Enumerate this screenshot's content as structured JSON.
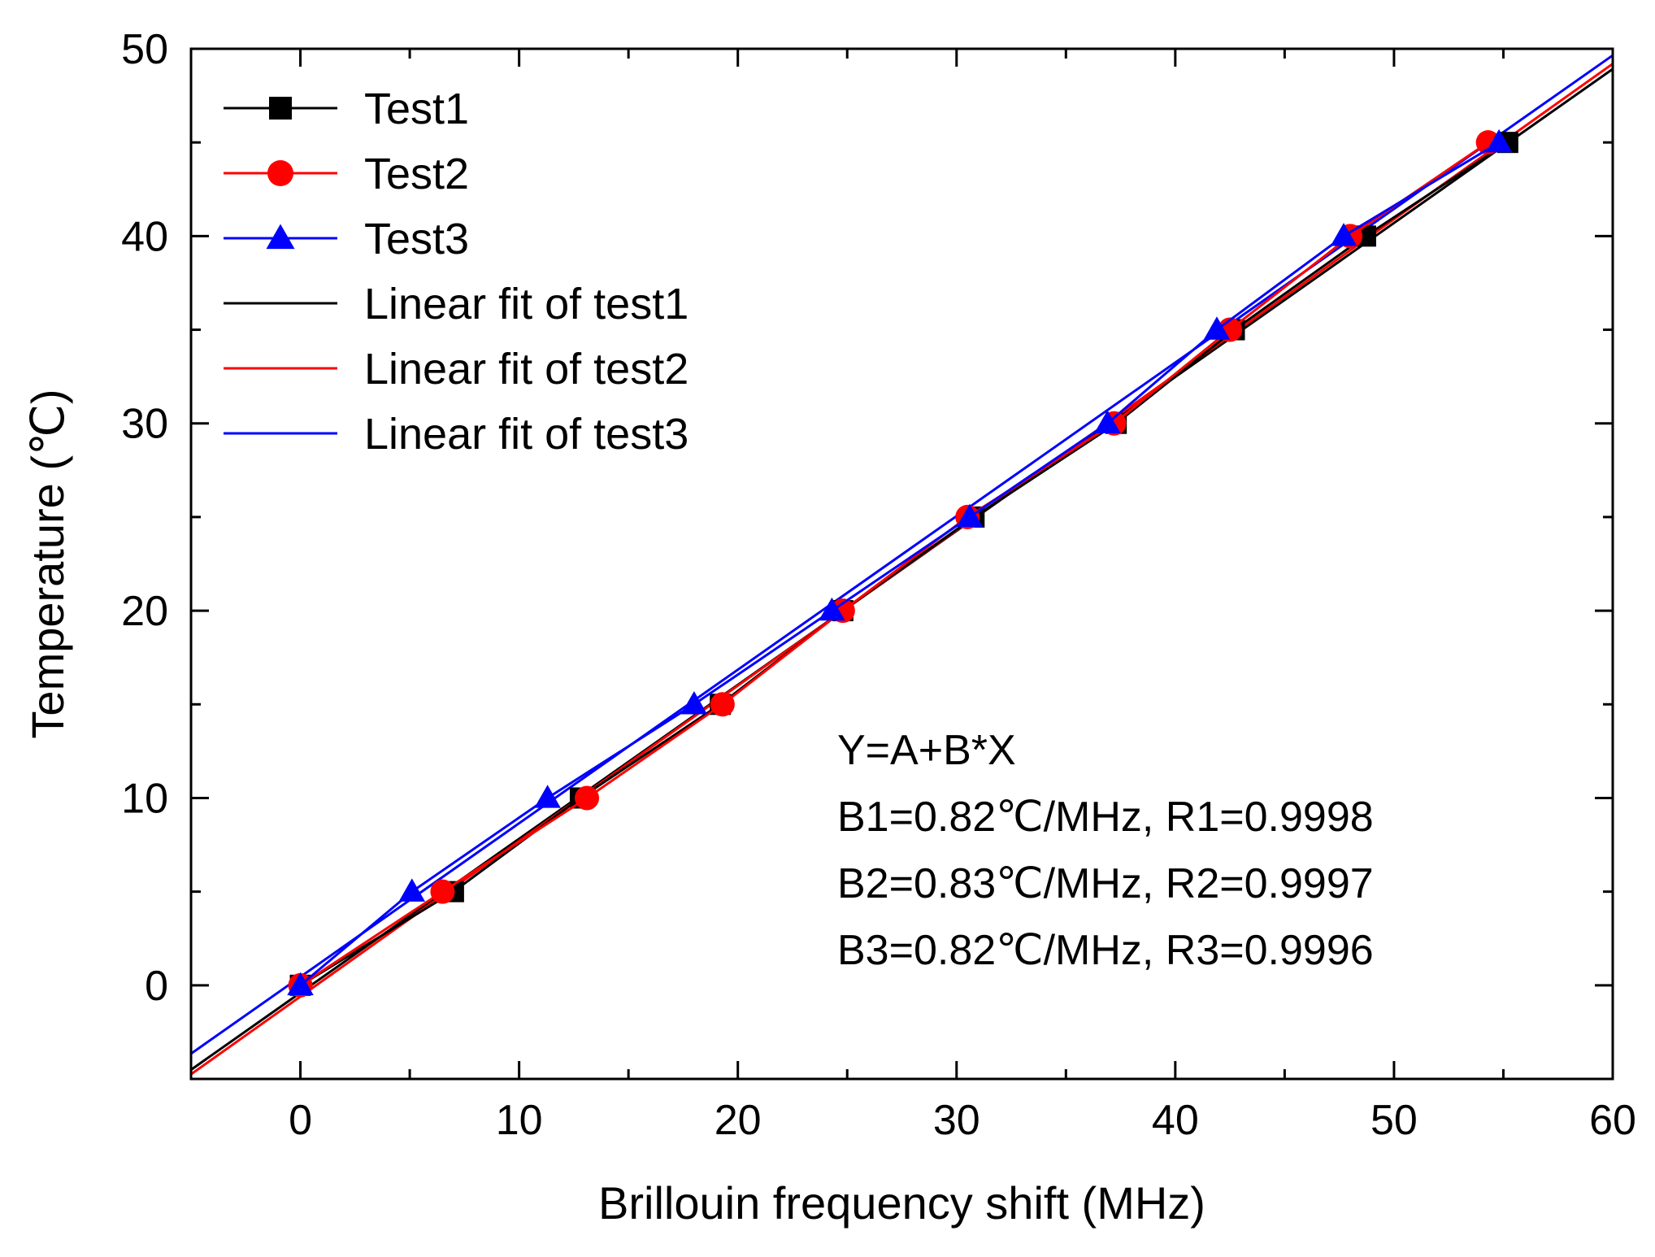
{
  "chart_data": {
    "type": "line",
    "xlabel": "Brillouin frequency shift (MHz)",
    "ylabel": "Temperature (℃)",
    "xlim": [
      -5,
      60
    ],
    "ylim": [
      -5,
      50
    ],
    "xticks": [
      0,
      10,
      20,
      30,
      40,
      50,
      60
    ],
    "yticks": [
      0,
      10,
      20,
      30,
      40,
      50
    ],
    "x_minor_step": 5,
    "y_minor_step": 5,
    "grid": false,
    "legend_position": "top-left",
    "series": [
      {
        "name": "Test1",
        "color": "#000000",
        "marker": "square",
        "x": [
          0,
          7,
          12.8,
          19.2,
          24.8,
          30.8,
          37.3,
          42.7,
          48.7,
          55.2
        ],
        "y": [
          0,
          5,
          10,
          15,
          20,
          25,
          30,
          35,
          40,
          45
        ]
      },
      {
        "name": "Test2",
        "color": "#ff0000",
        "marker": "circle",
        "x": [
          0,
          6.5,
          13.1,
          19.3,
          24.8,
          30.5,
          37.2,
          42.5,
          48.0,
          54.3
        ],
        "y": [
          0,
          5,
          10,
          15,
          20,
          25,
          30,
          35,
          40,
          45
        ]
      },
      {
        "name": "Test3",
        "color": "#0000ff",
        "marker": "triangle",
        "x": [
          0,
          5.1,
          11.3,
          18.0,
          24.3,
          30.6,
          36.9,
          41.9,
          47.7,
          54.8
        ],
        "y": [
          0,
          5,
          10,
          15,
          20,
          25,
          30,
          35,
          40,
          45
        ]
      }
    ],
    "fits": [
      {
        "name": "Linear fit of test1",
        "color": "#000000",
        "intercept": -0.4,
        "slope": 0.822
      },
      {
        "name": "Linear fit of test2",
        "color": "#ff0000",
        "intercept": -0.6,
        "slope": 0.83
      },
      {
        "name": "Linear fit of test3",
        "color": "#0000ff",
        "intercept": 0.45,
        "slope": 0.82
      }
    ],
    "annotations": [
      "Y=A+B*X",
      "B1=0.82℃/MHz, R1=0.9998",
      "B2=0.83℃/MHz, R2=0.9997",
      "B3=0.82℃/MHz, R3=0.9996"
    ]
  }
}
